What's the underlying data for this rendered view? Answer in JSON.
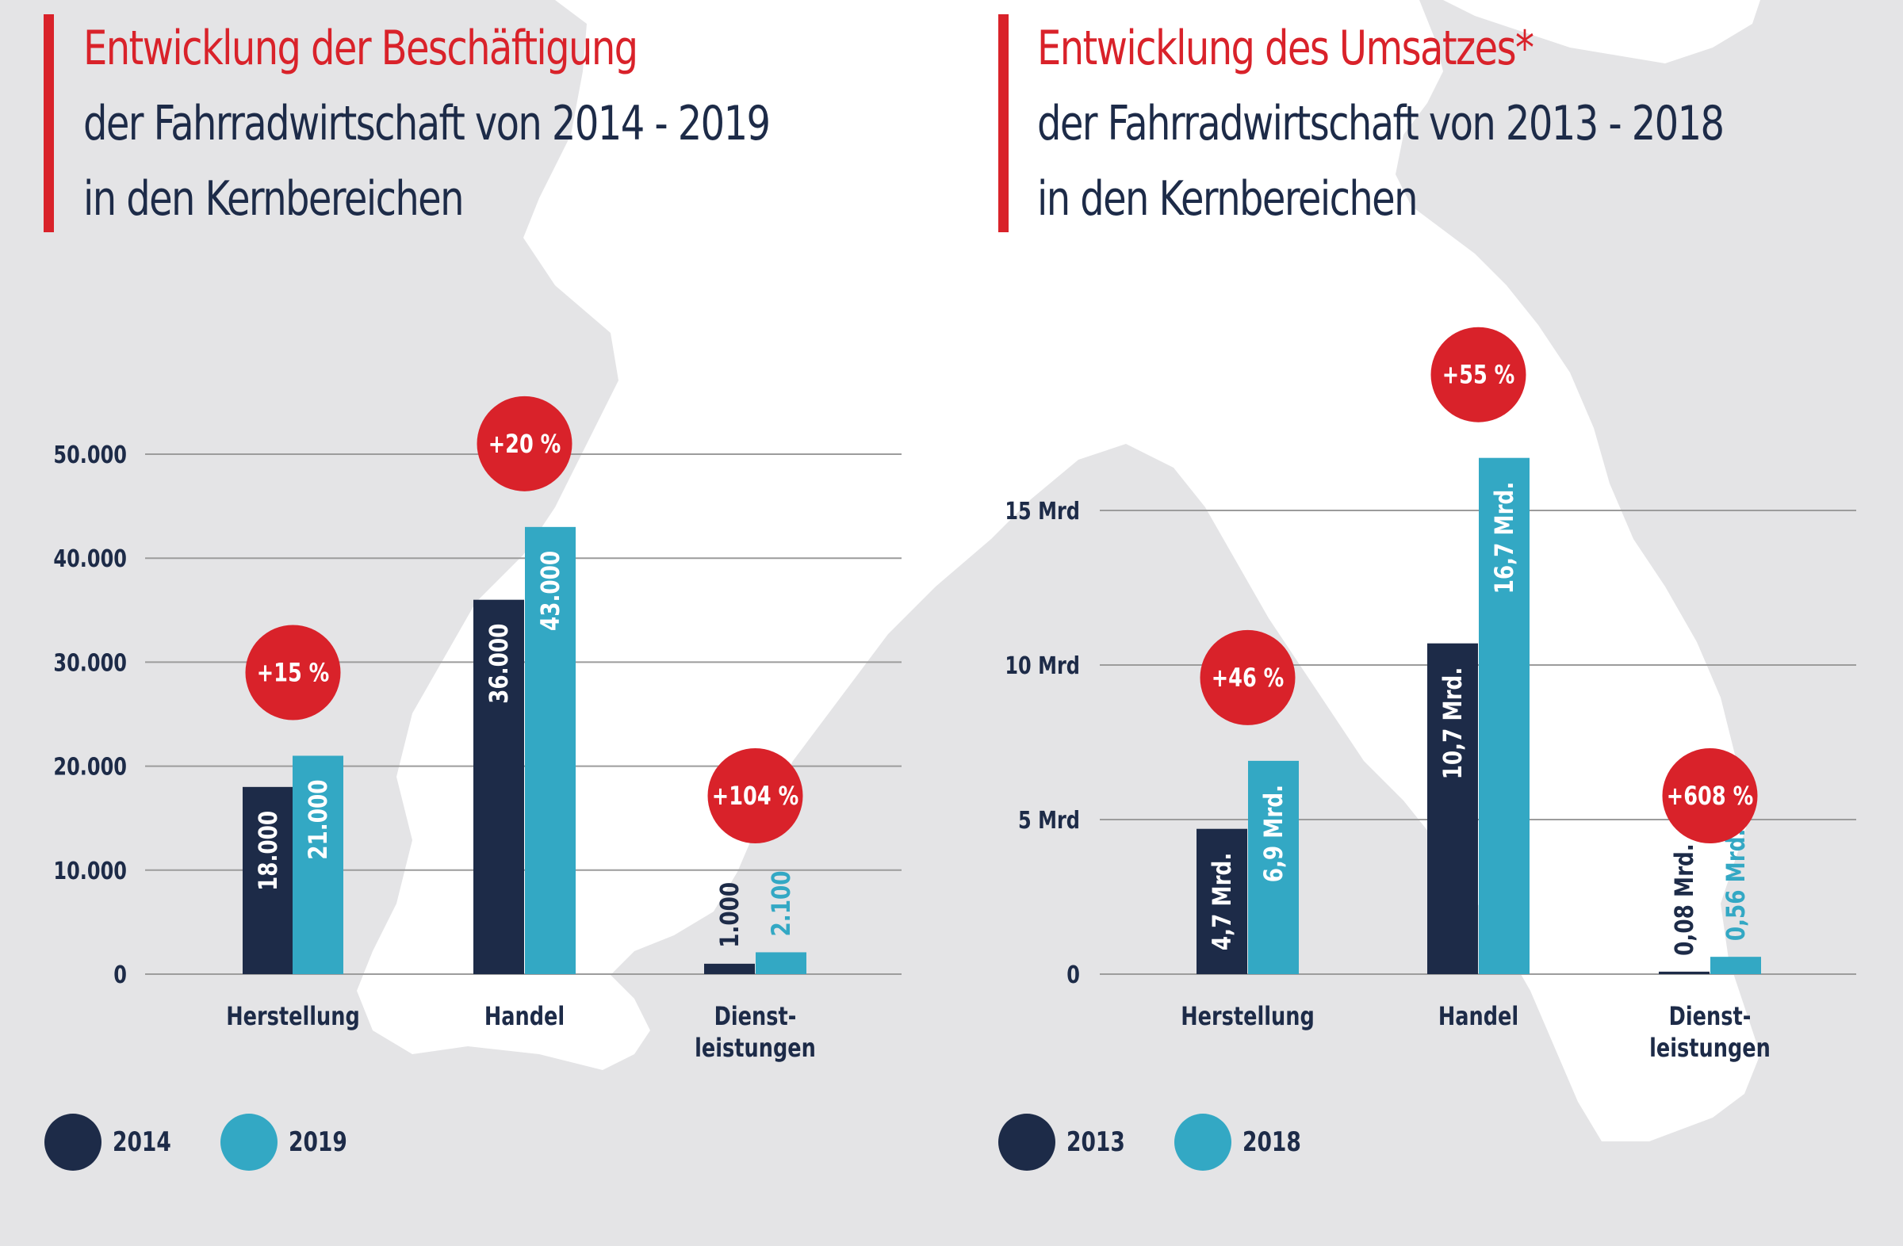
{
  "colors": {
    "dark": "#1d2b48",
    "light": "#33a8c4",
    "accent": "#d9222a",
    "grid": "#9c9c9c",
    "background": "#e4e4e6",
    "land": "#ffffff"
  },
  "panels": [
    {
      "title": {
        "line1": "Entwicklung der Beschäftigung",
        "line2": "der Fahrradwirtschaft von 2014 - 2019",
        "line3": "in den Kernbereichen"
      },
      "legend": [
        {
          "label": "2014",
          "color": "#1d2b48"
        },
        {
          "label": "2019",
          "color": "#33a8c4"
        }
      ]
    },
    {
      "title": {
        "line1": "Entwicklung des Umsatzes*",
        "line2": "der Fahrradwirtschaft von 2013 - 2018",
        "line3": "in den Kernbereichen"
      },
      "legend": [
        {
          "label": "2013",
          "color": "#1d2b48"
        },
        {
          "label": "2018",
          "color": "#33a8c4"
        }
      ]
    }
  ],
  "chart_data": [
    {
      "type": "bar",
      "categories": [
        "Herstellung",
        "Handel",
        "Dienst-\nleistungen"
      ],
      "series": [
        {
          "name": "2014",
          "values": [
            18000,
            36000,
            1000
          ],
          "labels": [
            "18.000",
            "36.000",
            "1.000"
          ]
        },
        {
          "name": "2019",
          "values": [
            21000,
            43000,
            2100
          ],
          "labels": [
            "21.000",
            "43.000",
            "2.100"
          ]
        }
      ],
      "changes": [
        "+15 %",
        "+20 %",
        "+104 %"
      ],
      "ylim": [
        0,
        50000
      ],
      "yticks": [
        0,
        10000,
        20000,
        30000,
        40000,
        50000
      ],
      "ytick_labels": [
        "0",
        "10.000",
        "20.000",
        "30.000",
        "40.000",
        "50.000"
      ],
      "grid": true,
      "legend_position": "bottom-left"
    },
    {
      "type": "bar",
      "categories": [
        "Herstellung",
        "Handel",
        "Dienst-\nleistungen"
      ],
      "series": [
        {
          "name": "2013",
          "values": [
            4.7,
            10.7,
            0.08
          ],
          "labels": [
            "4,7 Mrd.",
            "10,7 Mrd.",
            "0,08 Mrd."
          ]
        },
        {
          "name": "2018",
          "values": [
            6.9,
            16.7,
            0.56
          ],
          "labels": [
            "6,9 Mrd.",
            "16,7 Mrd.",
            "0,56 Mrd."
          ]
        }
      ],
      "changes": [
        "+46 %",
        "+55 %",
        "+608 %"
      ],
      "ylim": [
        0,
        15
      ],
      "yticks": [
        0,
        5,
        10,
        15
      ],
      "ytick_labels": [
        "0",
        "5 Mrd",
        "10 Mrd",
        "15 Mrd"
      ],
      "grid": true,
      "legend_position": "bottom-left"
    }
  ]
}
